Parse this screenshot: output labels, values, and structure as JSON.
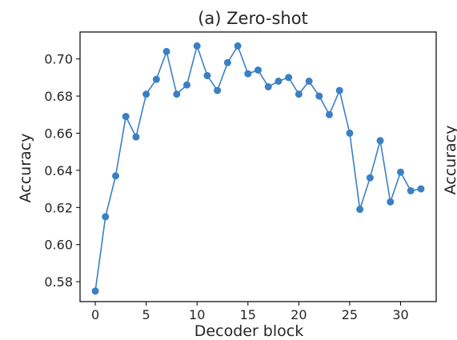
{
  "chart_data": {
    "type": "line",
    "title": "(a) Zero-shot",
    "xlabel": "Decoder block",
    "ylabel": "Accuracy",
    "right_ylabel": "Accuracy",
    "xlim": [
      -1.5,
      33.5
    ],
    "ylim": [
      0.5693,
      0.7145
    ],
    "xticks": [
      0,
      5,
      10,
      15,
      20,
      25,
      30
    ],
    "yticks": [
      0.58,
      0.6,
      0.62,
      0.64,
      0.66,
      0.68,
      0.7
    ],
    "ytick_labels": [
      "0.58",
      "0.60",
      "0.62",
      "0.64",
      "0.66",
      "0.68",
      "0.70"
    ],
    "grid": false,
    "legend": "none",
    "series": [
      {
        "color": "#3a80c4",
        "marker": "circle",
        "x": [
          0,
          1,
          2,
          3,
          4,
          5,
          6,
          7,
          8,
          9,
          10,
          11,
          12,
          13,
          14,
          15,
          16,
          17,
          18,
          19,
          20,
          21,
          22,
          23,
          24,
          25,
          26,
          27,
          28,
          29,
          30,
          31,
          32
        ],
        "y": [
          0.575,
          0.615,
          0.637,
          0.669,
          0.658,
          0.681,
          0.689,
          0.704,
          0.681,
          0.686,
          0.707,
          0.691,
          0.683,
          0.698,
          0.707,
          0.692,
          0.694,
          0.685,
          0.688,
          0.69,
          0.681,
          0.688,
          0.68,
          0.67,
          0.683,
          0.66,
          0.619,
          0.636,
          0.656,
          0.623,
          0.639,
          0.629,
          0.63
        ]
      }
    ]
  }
}
